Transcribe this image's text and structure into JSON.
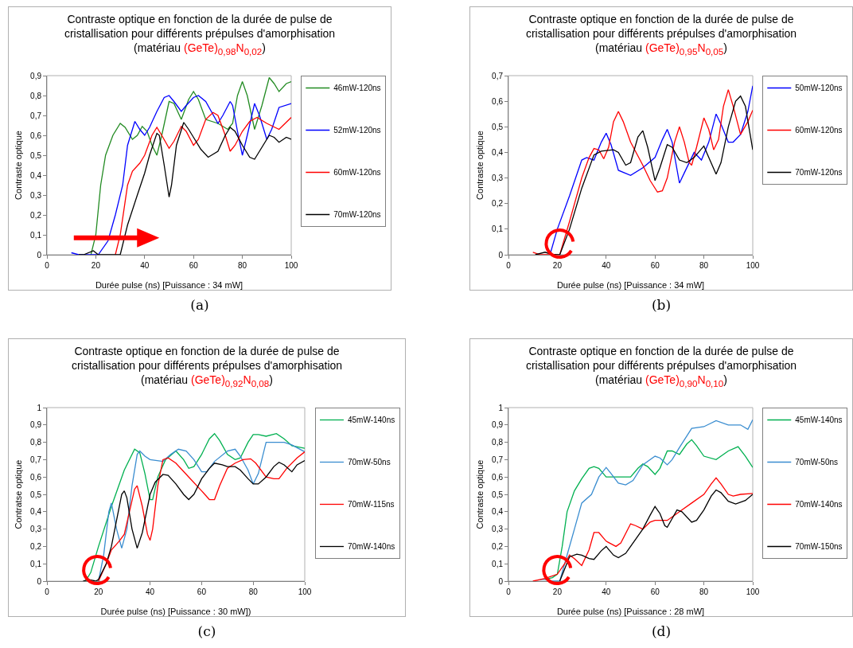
{
  "chart_data": [
    {
      "type": "line",
      "title": "Contraste optique en fonction de la durée de pulse de cristallisation pour différents prépulses d'amorphisation",
      "subtitle": "(matériau (GeTe)$_{0,98}$N$_{0,02}$)",
      "xlabel": "Durée pulse (ns) [Puissance : 34 mW]",
      "ylabel": "Contraste optique",
      "annotations": [
        "(a)"
      ],
      "legend": "right",
      "grid": false,
      "xlim": [
        0,
        100
      ],
      "xticks": [
        0,
        20,
        40,
        60,
        80,
        100
      ],
      "ylim": [
        0,
        0.9
      ],
      "yticks": [
        {
          "value": 0,
          "label": "0"
        },
        {
          "value": 0.1,
          "label": "0,1"
        },
        {
          "value": 0.2,
          "label": "0,2"
        },
        {
          "value": 0.3,
          "label": "0,3"
        },
        {
          "value": 0.4,
          "label": "0,4"
        },
        {
          "value": 0.5,
          "label": "0,5"
        },
        {
          "value": 0.6,
          "label": "0,6"
        },
        {
          "value": 0.7,
          "label": "0,7"
        },
        {
          "value": 0.8,
          "label": "0,8"
        },
        {
          "value": 0.9,
          "label": "0,9"
        }
      ],
      "series": [
        {
          "name": "46mW-120ns",
          "color": "#228b22",
          "x": [
            18,
            20,
            22,
            24,
            27,
            30,
            32,
            35,
            37,
            39,
            41,
            43,
            45,
            47,
            50,
            52,
            55,
            58,
            60,
            62,
            65,
            70,
            74,
            76,
            78,
            80,
            82,
            85,
            88,
            91,
            93,
            95,
            98,
            100
          ],
          "values": [
            0,
            0.1,
            0.35,
            0.5,
            0.6,
            0.66,
            0.64,
            0.58,
            0.6,
            0.645,
            0.62,
            0.55,
            0.5,
            0.6,
            0.77,
            0.76,
            0.68,
            0.78,
            0.82,
            0.78,
            0.68,
            0.66,
            0.63,
            0.66,
            0.8,
            0.87,
            0.8,
            0.63,
            0.75,
            0.89,
            0.86,
            0.82,
            0.86,
            0.87
          ]
        },
        {
          "name": "52mW-120ns",
          "color": "#0000ff",
          "x": [
            10,
            13,
            21,
            25,
            28,
            31,
            33,
            36,
            38,
            40,
            42,
            45,
            48,
            50,
            52,
            55,
            57,
            60,
            62,
            65,
            70,
            72,
            75,
            76,
            78,
            80,
            82,
            85,
            87,
            90,
            92,
            95,
            100
          ],
          "values": [
            0.01,
            0,
            0,
            0.07,
            0.2,
            0.35,
            0.55,
            0.67,
            0.63,
            0.6,
            0.64,
            0.72,
            0.79,
            0.8,
            0.77,
            0.72,
            0.75,
            0.79,
            0.8,
            0.77,
            0.66,
            0.7,
            0.77,
            0.75,
            0.62,
            0.5,
            0.6,
            0.76,
            0.7,
            0.58,
            0.63,
            0.74,
            0.76
          ]
        },
        {
          "name": "60mW-120ns",
          "color": "#ff0000",
          "x": [
            28,
            30,
            33,
            35,
            38,
            40,
            43,
            45,
            47,
            50,
            52,
            55,
            57,
            60,
            62,
            65,
            68,
            70,
            73,
            75,
            77,
            80,
            83,
            86,
            90,
            95,
            100
          ],
          "values": [
            0,
            0.1,
            0.35,
            0.42,
            0.46,
            0.5,
            0.6,
            0.64,
            0.6,
            0.535,
            0.57,
            0.645,
            0.62,
            0.55,
            0.58,
            0.68,
            0.715,
            0.7,
            0.6,
            0.52,
            0.55,
            0.62,
            0.67,
            0.69,
            0.66,
            0.63,
            0.69
          ]
        },
        {
          "name": "70mW-120ns",
          "color": "#000000",
          "x": [
            13,
            15,
            19,
            21,
            30,
            33,
            37,
            40,
            42,
            45,
            46,
            48,
            50,
            51,
            53,
            56,
            58,
            60,
            63,
            66,
            70,
            73,
            75,
            77,
            80,
            83,
            85,
            87,
            91,
            93,
            95,
            98,
            100
          ],
          "values": [
            0,
            0,
            0.02,
            0,
            0,
            0.15,
            0.3,
            0.41,
            0.5,
            0.61,
            0.6,
            0.45,
            0.29,
            0.35,
            0.55,
            0.665,
            0.63,
            0.59,
            0.53,
            0.49,
            0.52,
            0.6,
            0.64,
            0.62,
            0.55,
            0.49,
            0.48,
            0.52,
            0.6,
            0.59,
            0.565,
            0.59,
            0.58
          ]
        }
      ]
    },
    {
      "type": "line",
      "title": "Contraste optique en fonction de la durée de pulse de cristallisation pour différents prépulses d'amorphisation",
      "subtitle": "(matériau (GeTe)$_{0,95}$N$_{0,05}$)",
      "xlabel": "Durée pulse (ns) [Puissance : 34 mW]",
      "ylabel": "Contraste optique",
      "annotations": [
        "(b)"
      ],
      "legend": "right",
      "grid": false,
      "xlim": [
        0,
        100
      ],
      "xticks": [
        0,
        20,
        40,
        60,
        80,
        100
      ],
      "ylim": [
        0,
        0.7
      ],
      "yticks": [
        {
          "value": 0,
          "label": "0"
        },
        {
          "value": 0.1,
          "label": "0,1"
        },
        {
          "value": 0.2,
          "label": "0,2"
        },
        {
          "value": 0.3,
          "label": "0,3"
        },
        {
          "value": 0.4,
          "label": "0,4"
        },
        {
          "value": 0.5,
          "label": "0,5"
        },
        {
          "value": 0.6,
          "label": "0,6"
        },
        {
          "value": 0.7,
          "label": "0,7"
        }
      ],
      "series": [
        {
          "name": "50mW-120ns",
          "color": "#0000ff",
          "x": [
            17,
            20,
            25,
            30,
            32,
            35,
            38,
            40,
            42,
            45,
            50,
            55,
            60,
            63,
            65,
            67,
            70,
            72,
            75,
            76,
            79,
            82,
            85,
            87,
            90,
            92,
            95,
            98,
            100
          ],
          "values": [
            0,
            0.1,
            0.23,
            0.37,
            0.38,
            0.37,
            0.44,
            0.475,
            0.43,
            0.33,
            0.31,
            0.34,
            0.38,
            0.45,
            0.49,
            0.44,
            0.28,
            0.32,
            0.38,
            0.4,
            0.37,
            0.44,
            0.55,
            0.51,
            0.44,
            0.44,
            0.47,
            0.56,
            0.66
          ]
        },
        {
          "name": "60mW-120ns",
          "color": "#ff0000",
          "x": [
            10,
            13,
            21,
            25,
            30,
            33,
            35,
            37,
            39,
            41,
            43,
            45,
            47,
            50,
            55,
            58,
            61,
            63,
            65,
            68,
            70,
            72,
            74,
            75,
            77,
            80,
            82,
            84,
            86,
            88,
            90,
            92,
            95,
            98,
            100
          ],
          "values": [
            0.01,
            0,
            0,
            0.13,
            0.3,
            0.38,
            0.415,
            0.41,
            0.375,
            0.42,
            0.52,
            0.56,
            0.52,
            0.44,
            0.35,
            0.29,
            0.245,
            0.25,
            0.3,
            0.44,
            0.5,
            0.44,
            0.36,
            0.35,
            0.42,
            0.535,
            0.49,
            0.41,
            0.45,
            0.58,
            0.645,
            0.58,
            0.47,
            0.52,
            0.565
          ]
        },
        {
          "name": "70mW-120ns",
          "color": "#000000",
          "x": [
            11,
            15,
            18,
            21,
            25,
            30,
            35,
            38,
            43,
            45,
            48,
            50,
            53,
            55,
            57,
            60,
            62,
            65,
            67,
            70,
            73,
            76,
            80,
            82,
            85,
            87,
            90,
            93,
            95,
            97,
            100
          ],
          "values": [
            0,
            0.01,
            0,
            0,
            0.1,
            0.26,
            0.39,
            0.405,
            0.41,
            0.4,
            0.35,
            0.36,
            0.46,
            0.485,
            0.42,
            0.29,
            0.34,
            0.43,
            0.42,
            0.37,
            0.36,
            0.38,
            0.425,
            0.38,
            0.315,
            0.36,
            0.5,
            0.6,
            0.62,
            0.58,
            0.41
          ]
        }
      ]
    },
    {
      "type": "line",
      "title": "Contraste optique en fonction de la durée de pulse de cristallisation pour différents prépulses d'amorphisation",
      "subtitle": "(matériau (GeTe)$_{0,92}$N$_{0,08}$)",
      "xlabel": "Durée pulse (ns) [Puissance : 30 mW])",
      "ylabel": "Contratse optique",
      "annotations": [
        "(c)"
      ],
      "legend": "right",
      "grid": false,
      "xlim": [
        0,
        100
      ],
      "xticks": [
        0,
        20,
        40,
        60,
        80,
        100
      ],
      "ylim": [
        0,
        1
      ],
      "yticks": [
        {
          "value": 0,
          "label": "0"
        },
        {
          "value": 0.1,
          "label": "0,1"
        },
        {
          "value": 0.2,
          "label": "0,2"
        },
        {
          "value": 0.3,
          "label": "0,3"
        },
        {
          "value": 0.4,
          "label": "0,4"
        },
        {
          "value": 0.5,
          "label": "0,5"
        },
        {
          "value": 0.6,
          "label": "0,6"
        },
        {
          "value": 0.7,
          "label": "0,7"
        },
        {
          "value": 0.8,
          "label": "0,8"
        },
        {
          "value": 0.9,
          "label": "0,9"
        },
        1
      ],
      "series": [
        {
          "name": "45mW-140ns",
          "color": "#00b050",
          "x": [
            15,
            17,
            20,
            25,
            30,
            34,
            36,
            38,
            40,
            41,
            43,
            46,
            50,
            53,
            55,
            57,
            60,
            63,
            65,
            67,
            70,
            73,
            75,
            78,
            80,
            82,
            85,
            89,
            92,
            95,
            100
          ],
          "values": [
            0,
            0.05,
            0.2,
            0.43,
            0.64,
            0.76,
            0.74,
            0.62,
            0.47,
            0.47,
            0.6,
            0.7,
            0.75,
            0.7,
            0.65,
            0.66,
            0.73,
            0.82,
            0.85,
            0.81,
            0.73,
            0.7,
            0.71,
            0.8,
            0.845,
            0.845,
            0.835,
            0.85,
            0.82,
            0.78,
            0.765
          ]
        },
        {
          "name": "70mW-50ns",
          "color": "#3a8dd0",
          "x": [
            20,
            22,
            24,
            25,
            27,
            29,
            31,
            33,
            35,
            36,
            38,
            40,
            45,
            48,
            51,
            54,
            57,
            60,
            62,
            65,
            70,
            73,
            75,
            78,
            80,
            82,
            85,
            88,
            92,
            95,
            100
          ],
          "values": [
            0,
            0.15,
            0.4,
            0.45,
            0.3,
            0.19,
            0.3,
            0.55,
            0.73,
            0.75,
            0.72,
            0.7,
            0.69,
            0.73,
            0.76,
            0.75,
            0.7,
            0.63,
            0.63,
            0.69,
            0.75,
            0.76,
            0.72,
            0.64,
            0.56,
            0.62,
            0.8,
            0.8,
            0.8,
            0.785,
            0.745
          ]
        },
        {
          "name": "70mW-115ns",
          "color": "#ff0000",
          "x": [
            20,
            23,
            25,
            28,
            30,
            32,
            34,
            35,
            37,
            39,
            40,
            41,
            43,
            45,
            47,
            50,
            55,
            60,
            63,
            65,
            67,
            70,
            73,
            76,
            79,
            81,
            85,
            88,
            90,
            93,
            97,
            100
          ],
          "values": [
            0,
            0.1,
            0.18,
            0.23,
            0.27,
            0.4,
            0.53,
            0.55,
            0.43,
            0.27,
            0.235,
            0.3,
            0.55,
            0.7,
            0.71,
            0.68,
            0.6,
            0.52,
            0.47,
            0.47,
            0.55,
            0.65,
            0.68,
            0.7,
            0.705,
            0.68,
            0.6,
            0.59,
            0.59,
            0.65,
            0.71,
            0.745
          ]
        },
        {
          "name": "70mW-140ns",
          "color": "#000000",
          "x": [
            14,
            16,
            19,
            20,
            23,
            25,
            27,
            29,
            30,
            31,
            33,
            35,
            37,
            40,
            42,
            45,
            47,
            50,
            53,
            55,
            57,
            60,
            63,
            65,
            68,
            70,
            73,
            75,
            78,
            80,
            82,
            85,
            88,
            90,
            92,
            95,
            97,
            100
          ],
          "values": [
            0,
            0.01,
            0,
            0.01,
            0.1,
            0.2,
            0.35,
            0.5,
            0.52,
            0.48,
            0.3,
            0.19,
            0.28,
            0.5,
            0.57,
            0.615,
            0.61,
            0.56,
            0.5,
            0.47,
            0.5,
            0.59,
            0.65,
            0.68,
            0.67,
            0.66,
            0.66,
            0.64,
            0.59,
            0.56,
            0.56,
            0.6,
            0.66,
            0.685,
            0.67,
            0.63,
            0.67,
            0.695
          ]
        }
      ]
    },
    {
      "type": "line",
      "title": "Contraste optique en fonction de la durée de pulse de cristallisation pour différents prépulses d'amorphisation",
      "subtitle": "(matériau (GeTe)$_{0,90}$N$_{0,10}$)",
      "xlabel": "Durée pulse (ns) [Puissance : 28 mW]",
      "ylabel": "Contraste optique",
      "annotations": [
        "(d)"
      ],
      "legend": "right",
      "grid": false,
      "xlim": [
        0,
        100
      ],
      "xticks": [
        0,
        20,
        40,
        60,
        80,
        100
      ],
      "ylim": [
        0,
        1
      ],
      "yticks": [
        {
          "value": 0,
          "label": "0"
        },
        {
          "value": 0.1,
          "label": "0,1"
        },
        {
          "value": 0.2,
          "label": "0,2"
        },
        {
          "value": 0.3,
          "label": "0,3"
        },
        {
          "value": 0.4,
          "label": "0,4"
        },
        {
          "value": 0.5,
          "label": "0,5"
        },
        {
          "value": 0.6,
          "label": "0,6"
        },
        {
          "value": 0.7,
          "label": "0,7"
        },
        {
          "value": 0.8,
          "label": "0,8"
        },
        {
          "value": 0.9,
          "label": "0,9"
        },
        1
      ],
      "series": [
        {
          "name": "45mW-140ns",
          "color": "#00b050",
          "x": [
            15,
            18,
            20,
            22,
            24,
            27,
            30,
            33,
            35,
            37,
            40,
            45,
            50,
            53,
            55,
            57,
            60,
            62,
            65,
            67,
            70,
            73,
            75,
            77,
            80,
            85,
            90,
            94,
            97,
            100
          ],
          "values": [
            0.01,
            0.02,
            0.04,
            0.2,
            0.4,
            0.52,
            0.59,
            0.65,
            0.66,
            0.65,
            0.6,
            0.6,
            0.6,
            0.65,
            0.675,
            0.66,
            0.615,
            0.65,
            0.75,
            0.75,
            0.73,
            0.79,
            0.815,
            0.78,
            0.72,
            0.7,
            0.75,
            0.775,
            0.72,
            0.655
          ]
        },
        {
          "name": "70mW-50ns",
          "color": "#3a8dd0",
          "x": [
            13,
            16,
            17,
            21,
            24,
            27,
            30,
            34,
            37,
            40,
            42,
            45,
            48,
            51,
            55,
            60,
            62,
            65,
            67,
            70,
            75,
            80,
            85,
            90,
            95,
            98,
            100
          ],
          "values": [
            0.01,
            0.01,
            0,
            0,
            0.15,
            0.3,
            0.45,
            0.5,
            0.6,
            0.655,
            0.62,
            0.565,
            0.555,
            0.58,
            0.67,
            0.72,
            0.71,
            0.67,
            0.7,
            0.77,
            0.88,
            0.89,
            0.925,
            0.9,
            0.9,
            0.875,
            0.93
          ]
        },
        {
          "name": "70mW-140ns",
          "color": "#ff0000",
          "x": [
            10,
            15,
            20,
            23,
            25,
            27,
            30,
            33,
            35,
            37,
            40,
            44,
            46,
            50,
            52,
            55,
            58,
            60,
            65,
            68,
            70,
            75,
            80,
            83,
            85,
            87,
            90,
            92,
            95,
            100
          ],
          "values": [
            0,
            0.015,
            0.04,
            0.1,
            0.15,
            0.13,
            0.09,
            0.18,
            0.28,
            0.28,
            0.23,
            0.2,
            0.22,
            0.33,
            0.32,
            0.3,
            0.34,
            0.35,
            0.35,
            0.38,
            0.4,
            0.45,
            0.5,
            0.56,
            0.595,
            0.56,
            0.5,
            0.49,
            0.5,
            0.505
          ]
        },
        {
          "name": "70mW-150ns",
          "color": "#000000",
          "x": [
            21,
            23,
            25,
            28,
            30,
            33,
            35,
            38,
            40,
            43,
            45,
            48,
            50,
            55,
            58,
            60,
            62,
            64,
            65,
            67,
            69,
            71,
            75,
            77,
            80,
            83,
            85,
            87,
            90,
            93,
            97,
            100
          ],
          "values": [
            0,
            0.07,
            0.14,
            0.155,
            0.15,
            0.13,
            0.125,
            0.175,
            0.2,
            0.15,
            0.135,
            0.16,
            0.2,
            0.3,
            0.38,
            0.43,
            0.39,
            0.32,
            0.31,
            0.36,
            0.41,
            0.4,
            0.34,
            0.35,
            0.41,
            0.49,
            0.525,
            0.51,
            0.46,
            0.445,
            0.465,
            0.5
          ]
        }
      ]
    }
  ]
}
